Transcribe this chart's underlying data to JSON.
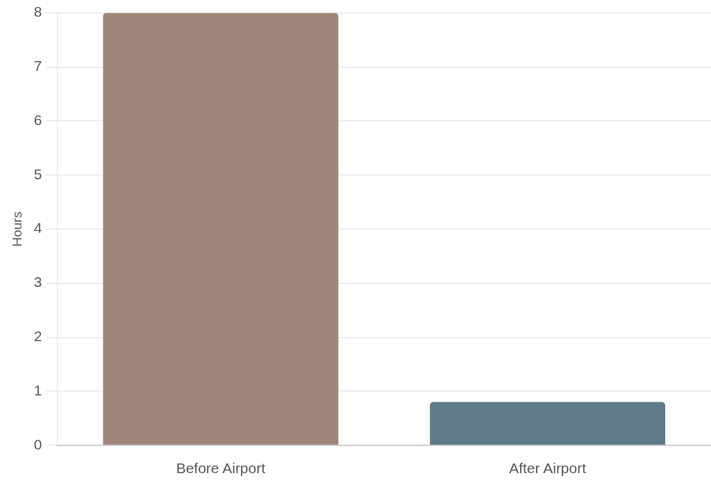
{
  "chart_data": {
    "type": "bar",
    "ylabel": "Hours",
    "categories": [
      "Before Airport",
      "After Airport"
    ],
    "values": [
      8,
      0.8
    ],
    "colors": [
      "#a0857b",
      "#5f7b88"
    ],
    "ylim": [
      0,
      8
    ],
    "yticks": [
      0,
      1,
      2,
      3,
      4,
      5,
      6,
      7,
      8
    ],
    "grid": "y",
    "legend": false
  }
}
